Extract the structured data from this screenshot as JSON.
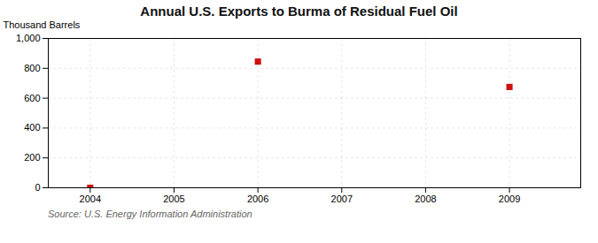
{
  "chart_data": {
    "type": "scatter",
    "title": "Annual U.S. Exports to Burma of Residual Fuel Oil",
    "ylabel": "Thousand Barrels",
    "source": "Source: U.S. Energy Information Administration",
    "x": [
      2004,
      2006,
      2009
    ],
    "values": [
      0,
      845,
      675
    ],
    "color": "#CC1111",
    "marker": "square",
    "xlim": [
      2003.5,
      2009.85
    ],
    "xticks": [
      2004,
      2005,
      2006,
      2007,
      2008,
      2009
    ],
    "ylim": [
      0,
      1000
    ],
    "yticks": [
      0,
      200,
      400,
      600,
      800,
      {
        "value": 1000,
        "label": "1,000"
      }
    ],
    "grid": true
  }
}
